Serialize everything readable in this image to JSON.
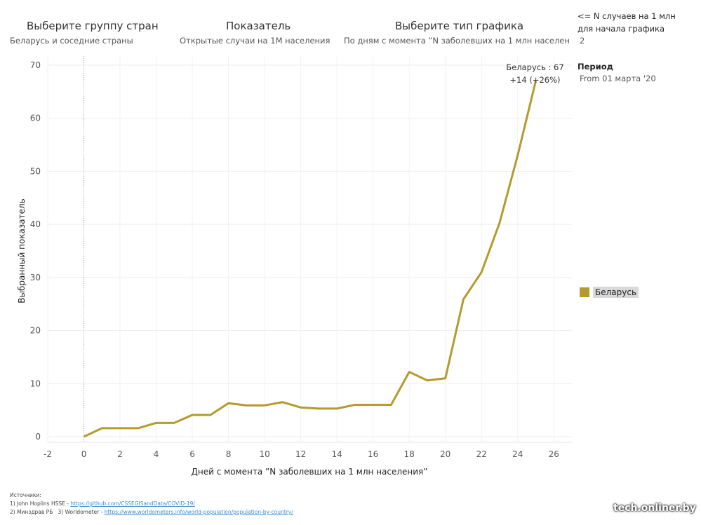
{
  "controls": [
    {
      "title": "Выберите группу стран",
      "value": "Беларусь и соседние страны"
    },
    {
      "title": "Показатель",
      "value": "Открытые случаи на 1М населения"
    },
    {
      "title": "Выберите тип графика",
      "value": "По дням с момента ”N заболевших на 1 млн населени.."
    }
  ],
  "side": {
    "threshold_label_1": "<= N случаев на 1 млн",
    "threshold_label_2": "для начала графика",
    "threshold_value": "2",
    "period_label": "Период",
    "period_value": "From 01 марта '20"
  },
  "legend": {
    "label": "Беларусь",
    "color": "#b59a2c"
  },
  "chart_data": {
    "type": "line",
    "xlabel": "Дней с момента ”N заболевших на 1 млн населения”",
    "ylabel": "Выбранный показатель",
    "xlim": [
      -2,
      27
    ],
    "ylim": [
      0,
      71
    ],
    "xticks": [
      -2,
      0,
      2,
      4,
      6,
      8,
      10,
      12,
      14,
      16,
      18,
      20,
      22,
      24,
      26
    ],
    "yticks": [
      0,
      10,
      20,
      30,
      40,
      50,
      60,
      70
    ],
    "series": [
      {
        "name": "Беларусь",
        "color": "#b59a2c",
        "x": [
          0,
          1,
          2,
          3,
          4,
          5,
          6,
          7,
          8,
          9,
          10,
          11,
          12,
          13,
          14,
          15,
          16,
          17,
          18,
          19,
          20,
          21,
          22,
          23,
          24,
          25
        ],
        "values": [
          0,
          1.6,
          1.6,
          1.6,
          2.6,
          2.6,
          4.1,
          4.1,
          6.3,
          5.9,
          5.9,
          6.5,
          5.5,
          5.3,
          5.3,
          6.0,
          6.0,
          6.0,
          12.2,
          10.6,
          11.0,
          25.9,
          31.0,
          40.3,
          53.0,
          67.0
        ]
      }
    ],
    "annotation": {
      "line1": "Беларусь : 67",
      "line2": "+14 (+26%)"
    }
  },
  "sources": {
    "heading": "Источники:",
    "line1_prefix": "1) John Hoplins HSSE - ",
    "line1_link": "https://github.com/CSSEGISandData/COVID-19/",
    "line2_prefix": "2) Минздрав РБ",
    "line2_mid": "3) Worldometer - ",
    "line2_link": "https://www.worldometers.info/world-population/population-by-country/"
  },
  "watermark": "tech.onliner.by"
}
